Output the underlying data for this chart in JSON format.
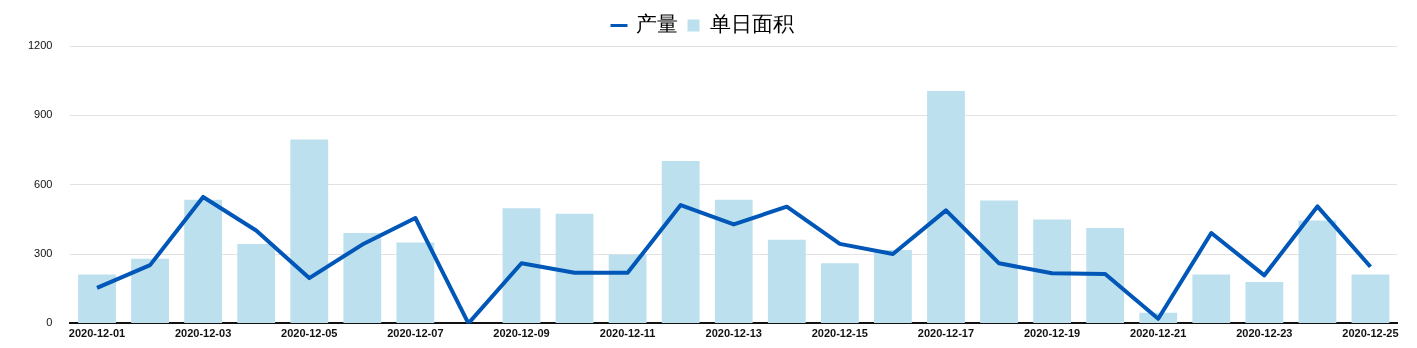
{
  "chart_data": {
    "type": "bar",
    "categories": [
      "2020-12-01",
      null,
      "2020-12-03",
      null,
      "2020-12-05",
      null,
      "2020-12-07",
      null,
      "2020-12-09",
      null,
      "2020-12-11",
      null,
      "2020-12-13",
      null,
      "2020-12-15",
      null,
      "2020-12-17",
      null,
      "2020-12-19",
      null,
      "2020-12-21",
      null,
      "2020-12-23",
      null,
      "2020-12-25"
    ],
    "series": [
      {
        "name": "产量",
        "type": "line",
        "color": "#0057b8",
        "values": [
          154,
          252,
          547,
          402,
          196,
          341,
          456,
          0,
          260,
          219,
          219,
          512,
          428,
          505,
          344,
          300,
          489,
          260,
          217,
          214,
          20,
          391,
          208,
          506,
          245
        ]
      },
      {
        "name": "单日面积",
        "type": "bar",
        "color": "#bde0ef",
        "values": [
          211,
          280,
          535,
          343,
          795,
          391,
          350,
          0,
          498,
          474,
          298,
          702,
          535,
          362,
          260,
          317,
          1005,
          532,
          450,
          413,
          46,
          211,
          179,
          445,
          211
        ]
      }
    ],
    "ylim": [
      0,
      1200
    ],
    "yticks": [
      0,
      300,
      600,
      900,
      1200
    ],
    "grid": "y",
    "legend": "top",
    "marker": "none"
  }
}
